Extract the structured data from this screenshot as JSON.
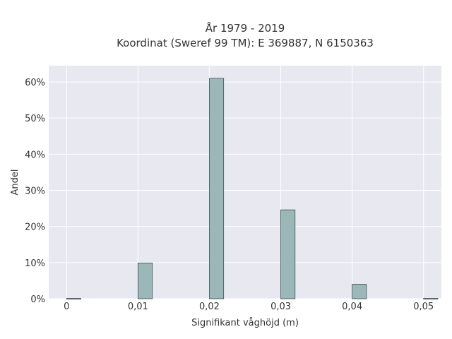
{
  "chart_data": {
    "type": "bar",
    "title_lines": [
      "År 1979 - 2019",
      "Koordinat (Sweref 99 TM): E 369887, N 6150363"
    ],
    "xlabel": "Signifikant våghöjd (m)",
    "ylabel": "Andel",
    "xlim": [
      -0.0025,
      0.0525
    ],
    "ylim": [
      0,
      0.645
    ],
    "grid": true,
    "bar_width": 0.002,
    "x": [
      0.0,
      0.01,
      0.02,
      0.03,
      0.04,
      0.05
    ],
    "values": [
      0.001,
      0.099,
      0.61,
      0.246,
      0.04,
      0.001
    ],
    "x_ticks": [
      0,
      0.01,
      0.02,
      0.03,
      0.04,
      0.05
    ],
    "x_tick_labels": [
      "0",
      "0,01",
      "0,02",
      "0,03",
      "0,04",
      "0,05"
    ],
    "y_ticks": [
      0,
      0.1,
      0.2,
      0.3,
      0.4,
      0.5,
      0.6
    ],
    "y_tick_labels": [
      "0%",
      "10%",
      "20%",
      "30%",
      "40%",
      "50%",
      "60%"
    ],
    "colors": {
      "bar_fill": "#9cb7b8",
      "bar_stroke": "#3d4f50",
      "plot_bg": "#e8e8f1",
      "grid": "#ffffff"
    }
  }
}
